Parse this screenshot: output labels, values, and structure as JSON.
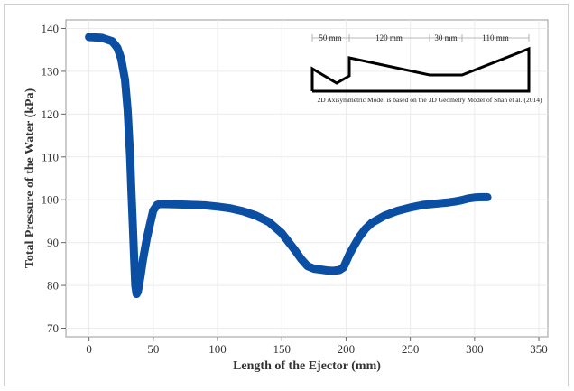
{
  "chart_data": {
    "type": "line",
    "title": "",
    "xlabel": "Length of the Ejector (mm)",
    "ylabel": "Total Pressure of the Water (kPa)",
    "xlim": [
      -18,
      357
    ],
    "ylim": [
      68,
      142
    ],
    "xticks": [
      0,
      50,
      100,
      150,
      200,
      250,
      300,
      350
    ],
    "yticks": [
      70,
      80,
      90,
      100,
      110,
      120,
      130,
      140
    ],
    "grid": true,
    "series": [
      {
        "color": "#0a4fa3",
        "x": [
          0,
          10,
          18,
          22,
          25,
          28,
          30,
          32,
          33,
          34,
          35,
          36,
          37,
          38,
          40,
          42,
          45,
          48,
          50,
          53,
          55,
          60,
          70,
          80,
          90,
          100,
          110,
          120,
          130,
          140,
          150,
          160,
          165,
          170,
          175,
          180,
          185,
          190,
          195,
          198,
          200,
          203,
          205,
          210,
          215,
          220,
          230,
          240,
          250,
          260,
          270,
          280,
          285,
          290,
          295,
          300,
          305,
          310
        ],
        "y": [
          138,
          137.8,
          137,
          135.5,
          133,
          128,
          121,
          110,
          102,
          95,
          87,
          80,
          78,
          78.5,
          82,
          86,
          91,
          95,
          97.5,
          98.8,
          99,
          99,
          98.9,
          98.8,
          98.7,
          98.4,
          98,
          97.3,
          96.3,
          94.8,
          92.2,
          88.3,
          86.2,
          84.5,
          83.9,
          83.7,
          83.5,
          83.4,
          83.6,
          84.2,
          85.5,
          87.5,
          88.6,
          91.2,
          93.2,
          94.6,
          96.3,
          97.4,
          98.2,
          98.8,
          99.1,
          99.4,
          99.6,
          99.9,
          100.3,
          100.5,
          100.6,
          100.6
        ]
      }
    ]
  },
  "inset": {
    "dimensions": [
      "50 mm",
      "120 mm",
      "30 mm",
      "110 mm"
    ],
    "caption": "2D Axisymmetric Model is based on the 3D Geometry Model of Shah et al. (2014)"
  }
}
